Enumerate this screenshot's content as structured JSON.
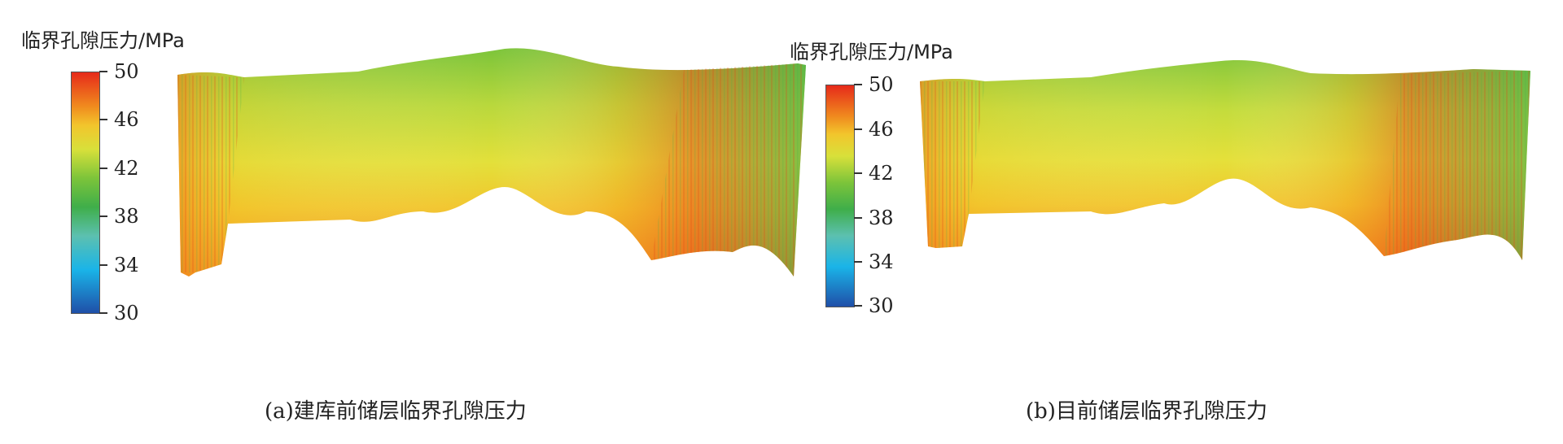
{
  "panels": [
    {
      "colorbar_title": "临界孔隙压力/MPa",
      "ticks": [
        "50",
        "46",
        "42",
        "38",
        "34",
        "30"
      ],
      "caption": "(a)建库前储层临界孔隙压力"
    },
    {
      "colorbar_title": "临界孔隙压力/MPa",
      "ticks": [
        "50",
        "46",
        "42",
        "38",
        "34",
        "30"
      ],
      "caption": "(b)目前储层临界孔隙压力"
    }
  ],
  "colormap": {
    "min": 30,
    "max": 50,
    "stops": [
      "#1f4fa8",
      "#1ab4e8",
      "#5cc0b0",
      "#3fae4a",
      "#7cc43a",
      "#d8e03a",
      "#f2c52c",
      "#f08a1e",
      "#e62a1a"
    ]
  }
}
